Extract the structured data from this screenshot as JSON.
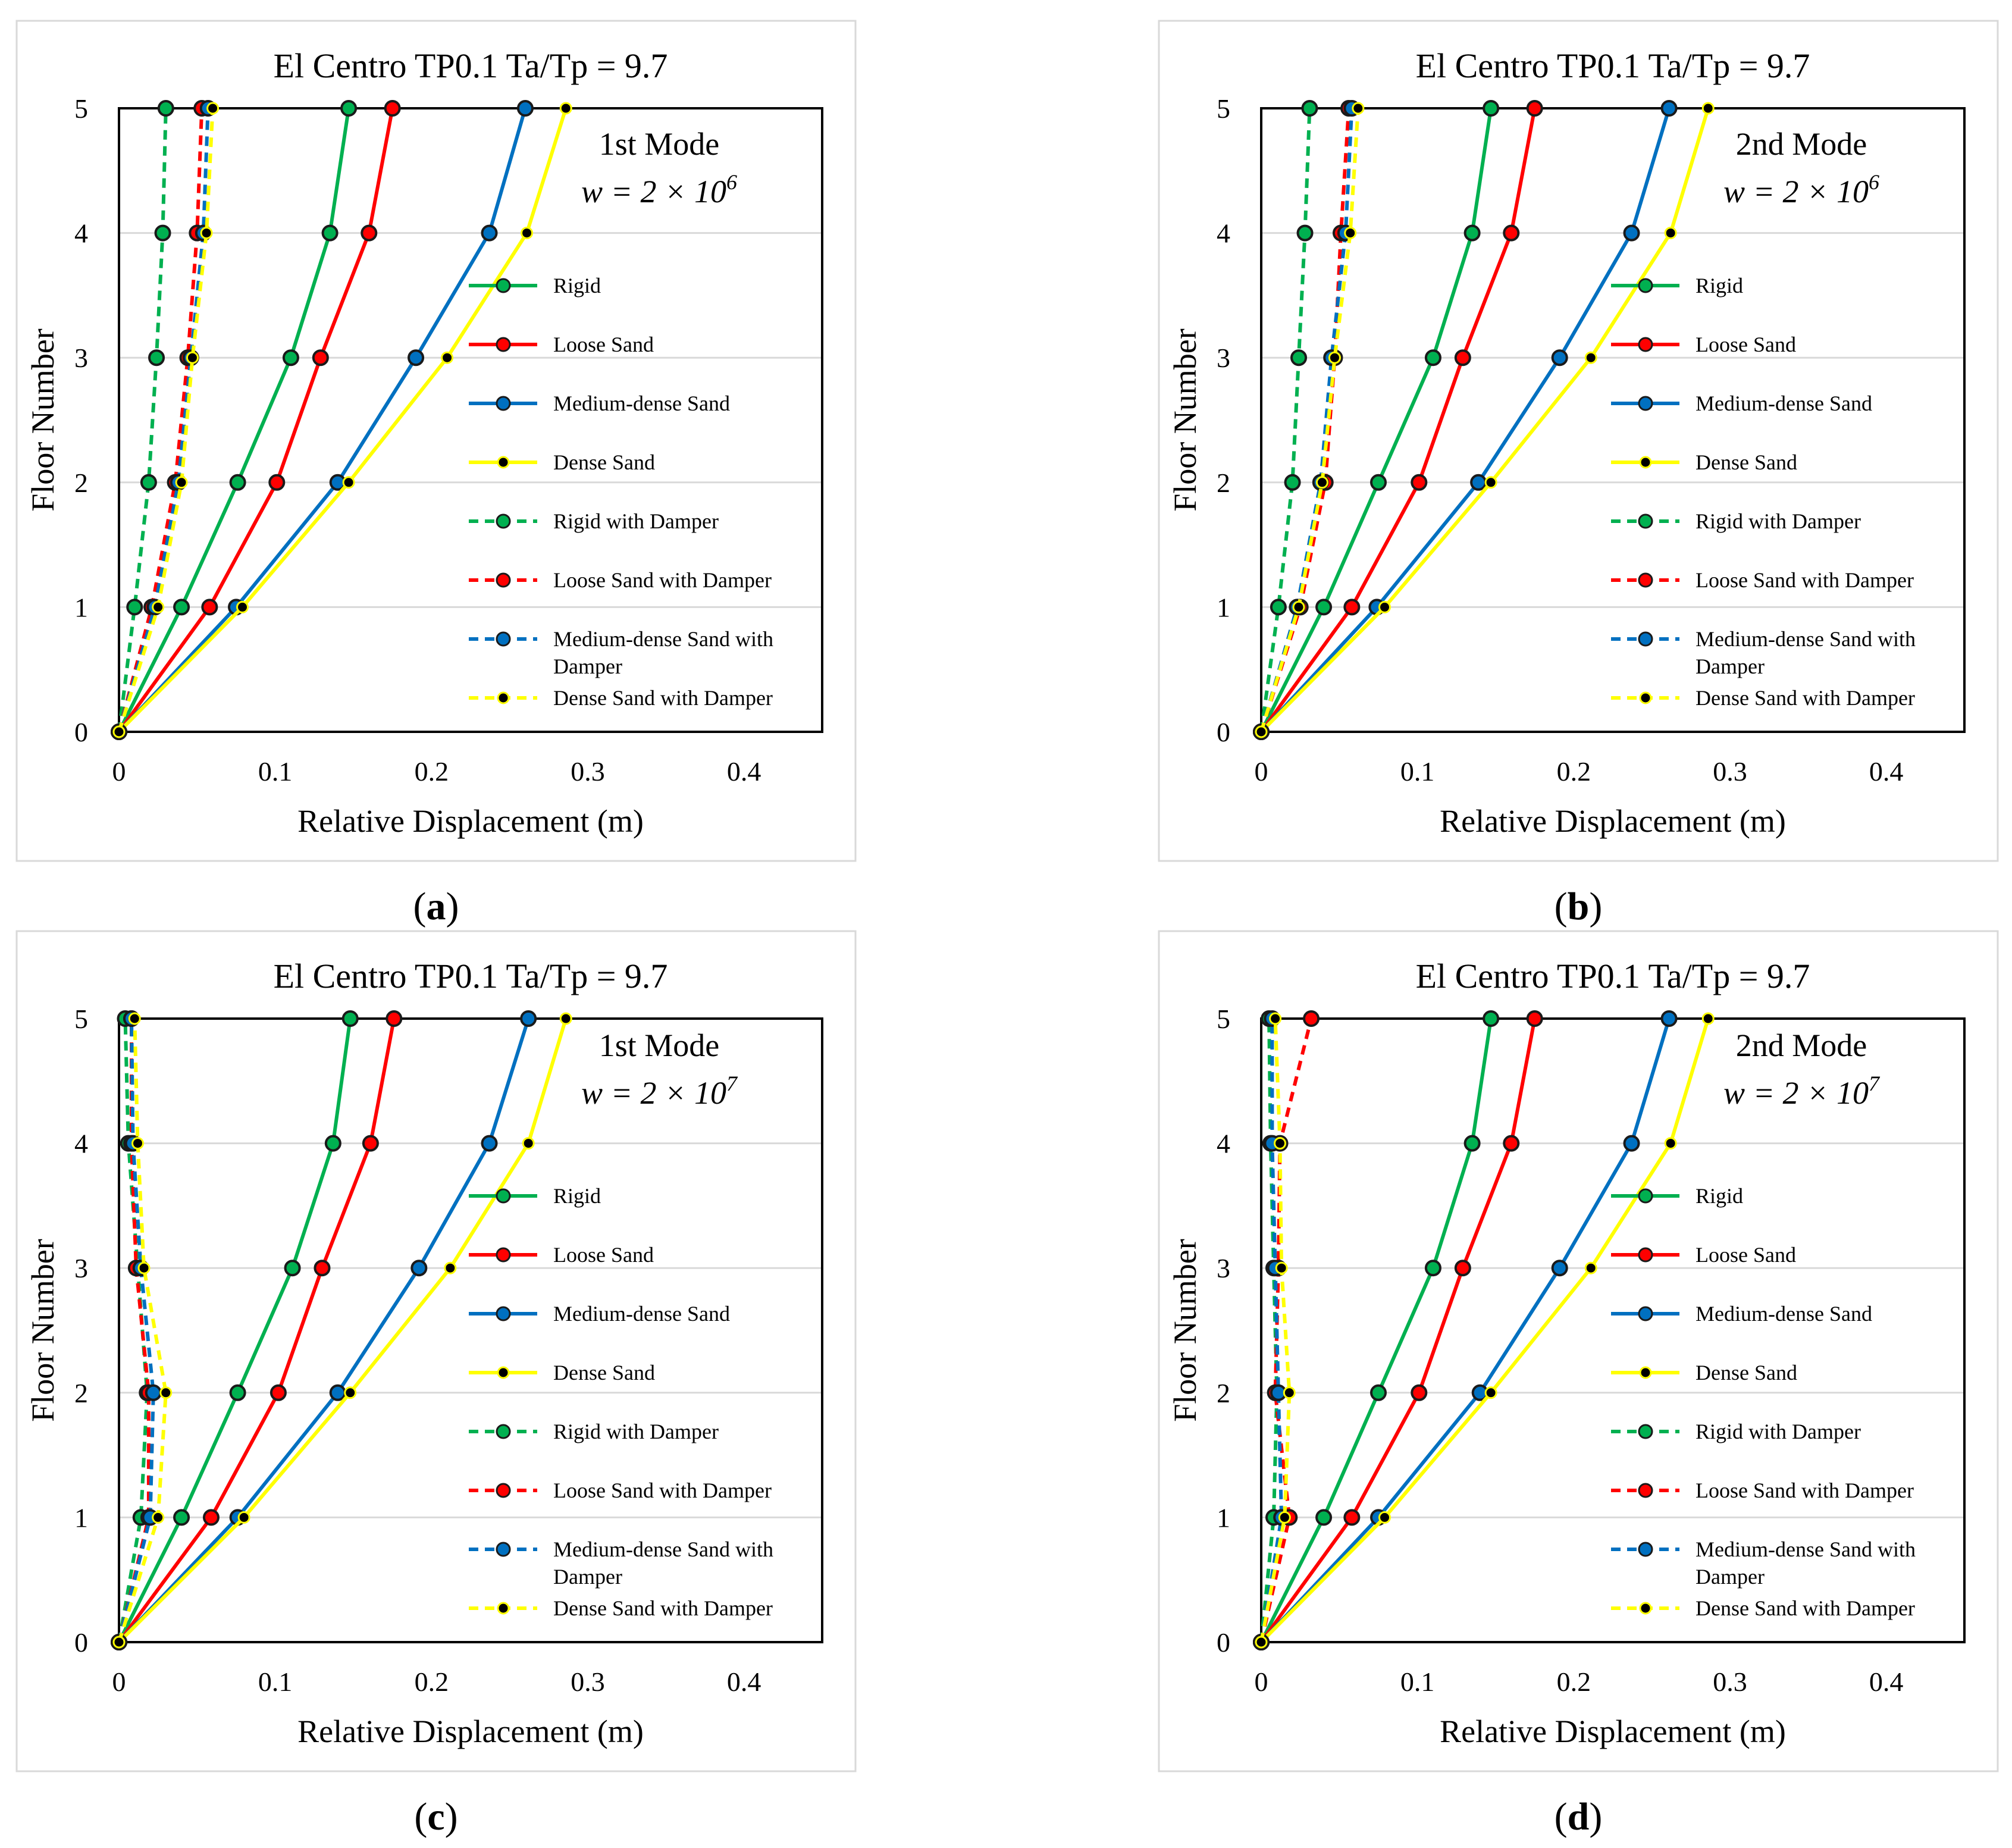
{
  "colors": {
    "rigid": "#00b050",
    "loose": "#ff0000",
    "medium": "#0070c0",
    "dense": "#ffff00",
    "marker_fill_dense": "#000000"
  },
  "chart_data": [
    {
      "type": "line",
      "panel": "a",
      "caption": "a",
      "title": "El Centro TP0.1   Ta/Tp = 9.7",
      "xlabel": "Relative Displacement (m)",
      "ylabel": "Floor Number",
      "xlim": [
        0,
        0.45
      ],
      "ylim": [
        0,
        5
      ],
      "xticks": [
        "0",
        "0.1",
        "0.2",
        "0.3",
        "0.4"
      ],
      "yticks": [
        "0",
        "1",
        "2",
        "3",
        "4",
        "5"
      ],
      "mode_label": "1st Mode",
      "w_label": "w = 2 × 10",
      "w_exp": "6",
      "y": [
        0,
        1,
        2,
        3,
        4,
        5
      ],
      "series": [
        {
          "name": "Rigid",
          "key": "rigid",
          "dashed": false,
          "values": [
            0,
            0.04,
            0.076,
            0.11,
            0.135,
            0.147
          ]
        },
        {
          "name": "Loose Sand",
          "key": "loose",
          "dashed": false,
          "values": [
            0,
            0.058,
            0.101,
            0.129,
            0.16,
            0.175
          ]
        },
        {
          "name": "Medium-dense Sand",
          "key": "medium",
          "dashed": false,
          "values": [
            0,
            0.075,
            0.14,
            0.19,
            0.237,
            0.26
          ]
        },
        {
          "name": "Dense Sand",
          "key": "dense",
          "dashed": false,
          "values": [
            0,
            0.079,
            0.147,
            0.21,
            0.261,
            0.286
          ]
        },
        {
          "name": "Rigid with Damper",
          "key": "rigid",
          "dashed": true,
          "values": [
            0,
            0.01,
            0.019,
            0.024,
            0.028,
            0.03
          ]
        },
        {
          "name": "Loose Sand with Damper",
          "key": "loose",
          "dashed": true,
          "values": [
            0,
            0.021,
            0.036,
            0.044,
            0.05,
            0.053
          ]
        },
        {
          "name": "Medium-dense Sand with Damper",
          "key": "medium",
          "dashed": true,
          "values": [
            0,
            0.023,
            0.038,
            0.046,
            0.054,
            0.057
          ]
        },
        {
          "name": "Dense Sand with Damper",
          "key": "dense",
          "dashed": true,
          "values": [
            0,
            0.025,
            0.04,
            0.047,
            0.056,
            0.06
          ]
        }
      ]
    },
    {
      "type": "line",
      "panel": "b",
      "caption": "b",
      "title": "El Centro TP0.1   Ta/Tp = 9.7",
      "xlabel": "Relative Displacement (m)",
      "ylabel": "Floor Number",
      "xlim": [
        0,
        0.45
      ],
      "ylim": [
        0,
        5
      ],
      "xticks": [
        "0",
        "0.1",
        "0.2",
        "0.3",
        "0.4"
      ],
      "yticks": [
        "0",
        "1",
        "2",
        "3",
        "4",
        "5"
      ],
      "mode_label": "2nd Mode",
      "w_label": "w = 2 × 10",
      "w_exp": "6",
      "y": [
        0,
        1,
        2,
        3,
        4,
        5
      ],
      "series": [
        {
          "name": "Rigid",
          "key": "rigid",
          "dashed": false,
          "values": [
            0,
            0.04,
            0.075,
            0.11,
            0.135,
            0.147
          ]
        },
        {
          "name": "Loose Sand",
          "key": "loose",
          "dashed": false,
          "values": [
            0,
            0.058,
            0.101,
            0.129,
            0.16,
            0.175
          ]
        },
        {
          "name": "Medium-dense Sand",
          "key": "medium",
          "dashed": false,
          "values": [
            0,
            0.074,
            0.139,
            0.191,
            0.237,
            0.261
          ]
        },
        {
          "name": "Dense Sand",
          "key": "dense",
          "dashed": false,
          "values": [
            0,
            0.079,
            0.147,
            0.211,
            0.262,
            0.286
          ]
        },
        {
          "name": "Rigid with Damper",
          "key": "rigid",
          "dashed": true,
          "values": [
            0,
            0.011,
            0.02,
            0.024,
            0.028,
            0.031
          ]
        },
        {
          "name": "Loose Sand with Damper",
          "key": "loose",
          "dashed": true,
          "values": [
            0,
            0.025,
            0.041,
            0.047,
            0.051,
            0.056
          ]
        },
        {
          "name": "Medium-dense Sand with Damper",
          "key": "medium",
          "dashed": true,
          "values": [
            0,
            0.023,
            0.038,
            0.045,
            0.054,
            0.058
          ]
        },
        {
          "name": "Dense Sand with Damper",
          "key": "dense",
          "dashed": true,
          "values": [
            0,
            0.024,
            0.039,
            0.047,
            0.057,
            0.062
          ]
        }
      ]
    },
    {
      "type": "line",
      "panel": "c",
      "caption": "c",
      "title": "El Centro TP0.1   Ta/Tp = 9.7",
      "xlabel": "Relative Displacement (m)",
      "ylabel": "Floor Number",
      "xlim": [
        0,
        0.45
      ],
      "ylim": [
        0,
        5
      ],
      "xticks": [
        "0",
        "0.1",
        "0.2",
        "0.3",
        "0.4"
      ],
      "yticks": [
        "0",
        "1",
        "2",
        "3",
        "4",
        "5"
      ],
      "mode_label": "1st Mode",
      "w_label": "w = 2 × 10",
      "w_exp": "7",
      "y": [
        0,
        1,
        2,
        3,
        4,
        5
      ],
      "series": [
        {
          "name": "Rigid",
          "key": "rigid",
          "dashed": false,
          "values": [
            0,
            0.04,
            0.076,
            0.111,
            0.137,
            0.148
          ]
        },
        {
          "name": "Loose Sand",
          "key": "loose",
          "dashed": false,
          "values": [
            0,
            0.059,
            0.102,
            0.13,
            0.161,
            0.176
          ]
        },
        {
          "name": "Medium-dense Sand",
          "key": "medium",
          "dashed": false,
          "values": [
            0,
            0.076,
            0.14,
            0.192,
            0.237,
            0.262
          ]
        },
        {
          "name": "Dense Sand",
          "key": "dense",
          "dashed": false,
          "values": [
            0,
            0.08,
            0.148,
            0.212,
            0.262,
            0.286
          ]
        },
        {
          "name": "Rigid with Damper",
          "key": "rigid",
          "dashed": true,
          "values": [
            0,
            0.014,
            0.018,
            0.012,
            0.006,
            0.004
          ]
        },
        {
          "name": "Loose Sand with Damper",
          "key": "loose",
          "dashed": true,
          "values": [
            0,
            0.019,
            0.019,
            0.011,
            0.008,
            0.008
          ]
        },
        {
          "name": "Medium-dense Sand with Damper",
          "key": "medium",
          "dashed": true,
          "values": [
            0,
            0.02,
            0.022,
            0.014,
            0.009,
            0.008
          ]
        },
        {
          "name": "Dense Sand with Damper",
          "key": "dense",
          "dashed": true,
          "values": [
            0,
            0.025,
            0.03,
            0.016,
            0.012,
            0.01
          ]
        }
      ]
    },
    {
      "type": "line",
      "panel": "d",
      "caption": "d",
      "title": "El Centro TP0.1   Ta/Tp = 9.7",
      "xlabel": "Relative Displacement (m)",
      "ylabel": "Floor Number",
      "xlim": [
        0,
        0.45
      ],
      "ylim": [
        0,
        5
      ],
      "xticks": [
        "0",
        "0.1",
        "0.2",
        "0.3",
        "0.4"
      ],
      "yticks": [
        "0",
        "1",
        "2",
        "3",
        "4",
        "5"
      ],
      "mode_label": "2nd Mode",
      "w_label": "w = 2 × 10",
      "w_exp": "7",
      "y": [
        0,
        1,
        2,
        3,
        4,
        5
      ],
      "series": [
        {
          "name": "Rigid",
          "key": "rigid",
          "dashed": false,
          "values": [
            0,
            0.04,
            0.075,
            0.11,
            0.135,
            0.147
          ]
        },
        {
          "name": "Loose Sand",
          "key": "loose",
          "dashed": false,
          "values": [
            0,
            0.058,
            0.101,
            0.129,
            0.16,
            0.175
          ]
        },
        {
          "name": "Medium-dense Sand",
          "key": "medium",
          "dashed": false,
          "values": [
            0,
            0.075,
            0.14,
            0.191,
            0.237,
            0.261
          ]
        },
        {
          "name": "Dense Sand",
          "key": "dense",
          "dashed": false,
          "values": [
            0,
            0.079,
            0.147,
            0.211,
            0.262,
            0.286
          ]
        },
        {
          "name": "Rigid with Damper",
          "key": "rigid",
          "dashed": true,
          "values": [
            0,
            0.008,
            0.01,
            0.008,
            0.006,
            0.005
          ]
        },
        {
          "name": "Loose Sand with Damper",
          "key": "loose",
          "dashed": true,
          "values": [
            0,
            0.018,
            0.009,
            0.011,
            0.012,
            0.032
          ]
        },
        {
          "name": "Medium-dense Sand with Damper",
          "key": "medium",
          "dashed": true,
          "values": [
            0,
            0.013,
            0.011,
            0.009,
            0.007,
            0.007
          ]
        },
        {
          "name": "Dense Sand with Damper",
          "key": "dense",
          "dashed": true,
          "values": [
            0,
            0.015,
            0.018,
            0.013,
            0.012,
            0.009
          ]
        }
      ]
    }
  ]
}
